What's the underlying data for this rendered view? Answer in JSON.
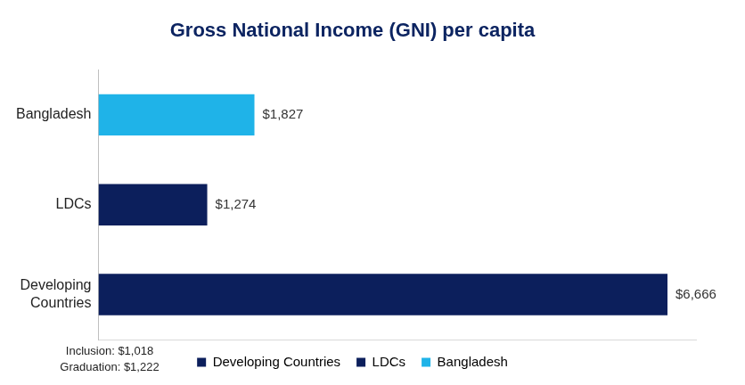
{
  "chart_data": {
    "type": "bar",
    "orientation": "horizontal",
    "title": "Gross National Income (GNI) per capita",
    "categories": [
      "Bangladesh",
      "LDCs",
      "Developing Countries"
    ],
    "values": [
      1827,
      1274,
      6666
    ],
    "value_labels": [
      "$1,827",
      "$1,274",
      "$6,666"
    ],
    "colors": [
      "#1fb3e8",
      "#0c1f5c",
      "#0c1f5c"
    ],
    "data_labels": true,
    "xlim": [
      0,
      7000
    ],
    "grid": false,
    "tick_labels": "y",
    "legend": "bottom",
    "annotations": [
      "Inclusion: $1,018",
      "Graduation: $1,222"
    ]
  }
}
